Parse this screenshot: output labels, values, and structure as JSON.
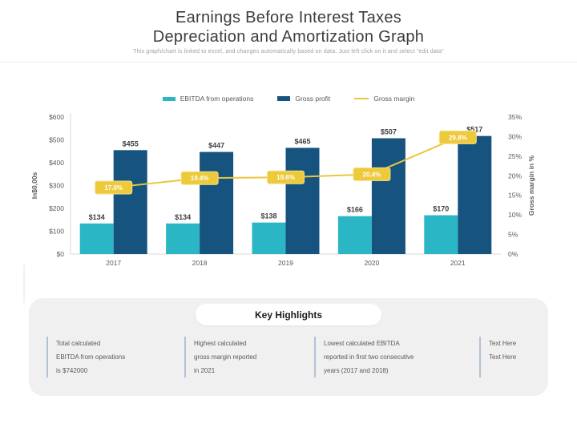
{
  "page": {
    "title": "Earnings Before Interest Taxes\nDepreciation and Amortization Graph",
    "subtitle": "This graph/chart is linked to excel, and changes automatically based on data. Just left click on it and select \"edit data\""
  },
  "chart_data": {
    "type": "bar",
    "categories": [
      "2017",
      "2018",
      "2019",
      "2020",
      "2021"
    ],
    "series": [
      {
        "name": "EBITDA from operations",
        "type": "bar",
        "color": "#2ab6c5",
        "values": [
          134,
          134,
          138,
          166,
          170
        ],
        "labels": [
          "$134",
          "$134",
          "$138",
          "$166",
          "$170"
        ]
      },
      {
        "name": "Gross profit",
        "type": "bar",
        "color": "#16537e",
        "values": [
          455,
          447,
          465,
          507,
          517
        ],
        "labels": [
          "$455",
          "$447",
          "$465",
          "$507",
          "$517"
        ]
      },
      {
        "name": "Gross margin",
        "type": "line",
        "color": "#e9c63d",
        "axis": "right",
        "values": [
          17.0,
          19.4,
          19.6,
          20.4,
          29.8
        ],
        "labels": [
          "17.0%",
          "19.4%",
          "19.6%",
          "20.4%",
          "29.8%"
        ]
      }
    ],
    "left_axis": {
      "label": "In$0,00s",
      "min": 0,
      "max": 600,
      "ticks": [
        "$0",
        "$100",
        "$200",
        "$300",
        "$400",
        "$500",
        "$600"
      ]
    },
    "right_axis": {
      "label": "Gross margin in %",
      "min": 0,
      "max": 35,
      "ticks": [
        "0%",
        "5%",
        "10%",
        "15%",
        "20%",
        "25%",
        "30%",
        "35%"
      ]
    },
    "legend_position": "top",
    "grid": false,
    "marker_box_fill": "#edc93c",
    "marker_box_stroke": "#f6e48b"
  },
  "highlights": {
    "title": "Key Highlights",
    "items": [
      {
        "text": "Total calculated\nEBITDA from operations\nis $742000"
      },
      {
        "text": "Highest calculated\ngross margin reported\nin 2021"
      },
      {
        "text": "Lowest calculated EBITDA\nreported in first two consecutive\nyears (2017 and 2018)"
      },
      {
        "text": "Text Here\nText Here"
      }
    ]
  }
}
